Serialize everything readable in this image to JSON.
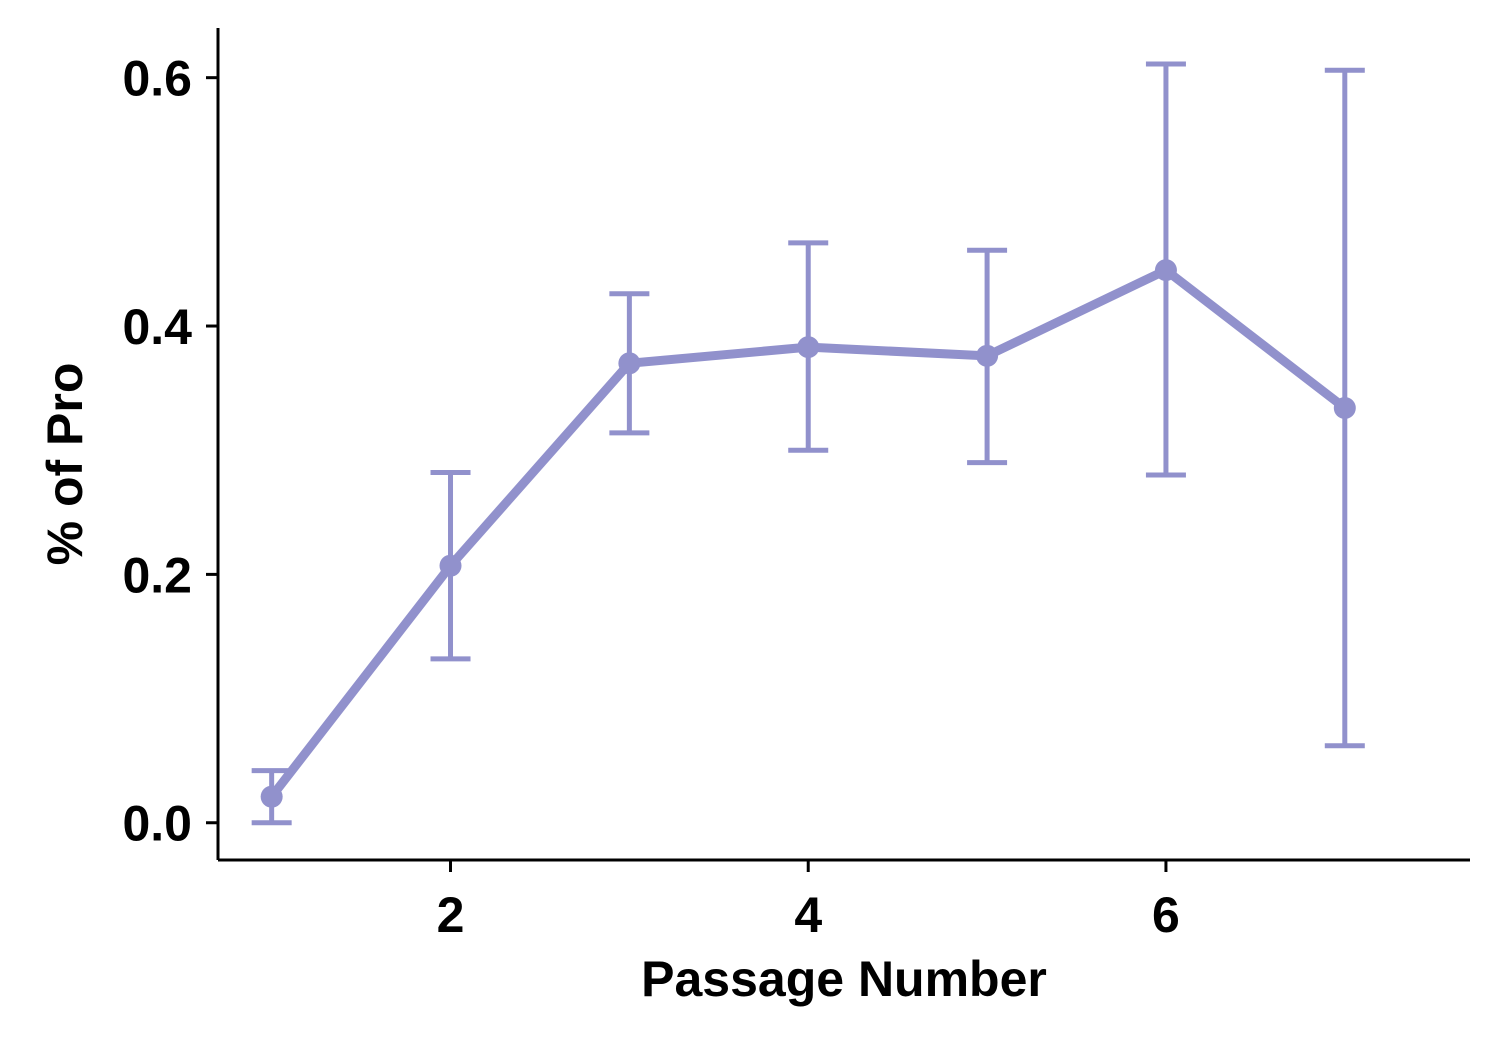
{
  "chart_data": {
    "type": "line",
    "title": "",
    "xlabel": "Passage Number",
    "ylabel": "% of Pro",
    "xlim": [
      0.7,
      7.7
    ],
    "ylim": [
      -0.03,
      0.64
    ],
    "x_ticks": [
      {
        "value": 2,
        "label": "2"
      },
      {
        "value": 4,
        "label": "4"
      },
      {
        "value": 6,
        "label": "6"
      }
    ],
    "y_ticks": [
      {
        "value": 0.0,
        "label": "0.0"
      },
      {
        "value": 0.2,
        "label": "0.2"
      },
      {
        "value": 0.4,
        "label": "0.4"
      },
      {
        "value": 0.6,
        "label": "0.6"
      }
    ],
    "grid": false,
    "legend": "none",
    "series": [
      {
        "name": "% of Pro",
        "color": "#9191cc",
        "x": [
          1,
          2,
          3,
          4,
          5,
          6,
          7
        ],
        "y": [
          0.021,
          0.207,
          0.37,
          0.383,
          0.376,
          0.445,
          0.334
        ],
        "error_lower": [
          0.0,
          0.132,
          0.314,
          0.3,
          0.29,
          0.28,
          0.062
        ],
        "error_upper": [
          0.042,
          0.282,
          0.426,
          0.467,
          0.461,
          0.611,
          0.606
        ]
      }
    ]
  }
}
